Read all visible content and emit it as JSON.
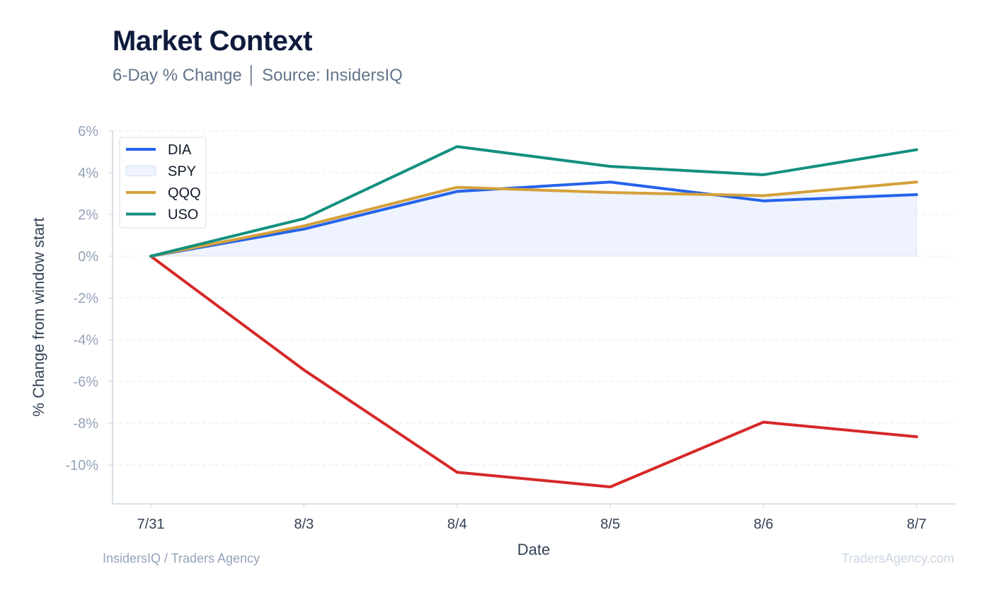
{
  "header": {
    "title": "Market Context",
    "subtitle": "6-Day % Change │ Source: InsidersIQ"
  },
  "footer": {
    "left": "InsidersIQ / Traders Agency",
    "right": "TradersAgency.com"
  },
  "colors": {
    "title": "#0f1b3d",
    "axis_text": "#94a3b8",
    "grid": "#e5e9f0",
    "dia": "#2563eb",
    "spy_fill": "#eef3fd",
    "qqq": "#d4a03a",
    "uso": "#13907f",
    "red_series": "#d62828"
  },
  "chart_data": {
    "type": "line",
    "xlabel": "Date",
    "ylabel": "% Change from window start",
    "categories": [
      "7/31",
      "8/3",
      "8/4",
      "8/5",
      "8/6",
      "8/7"
    ],
    "ylim": [
      -11.8,
      6
    ],
    "yticks": [
      6,
      4,
      2,
      0,
      -2,
      -4,
      -6,
      -8,
      -10
    ],
    "ytick_labels": [
      "6%",
      "4%",
      "2%",
      "0%",
      "-2%",
      "-4%",
      "-6%",
      "-8%",
      "-10%"
    ],
    "grid": true,
    "legend_position": "top-left",
    "series": [
      {
        "name": "DIA",
        "kind": "line",
        "color": "#2563eb",
        "values": [
          0,
          1.3,
          3.1,
          3.55,
          2.65,
          2.95
        ]
      },
      {
        "name": "SPY",
        "kind": "area",
        "color": "#eef3fd",
        "values": [
          0,
          1.35,
          3.2,
          3.1,
          2.95,
          2.95
        ]
      },
      {
        "name": "QQQ",
        "kind": "line",
        "color": "#d4a03a",
        "values": [
          0,
          1.45,
          3.3,
          3.05,
          2.9,
          3.55
        ]
      },
      {
        "name": "USO",
        "kind": "line",
        "color": "#13907f",
        "values": [
          0,
          1.8,
          5.25,
          4.3,
          3.9,
          5.1
        ]
      },
      {
        "kind": "line",
        "color": "#d62828",
        "values": [
          0,
          -5.45,
          -10.35,
          -11.05,
          -7.95,
          -8.65
        ]
      }
    ]
  }
}
